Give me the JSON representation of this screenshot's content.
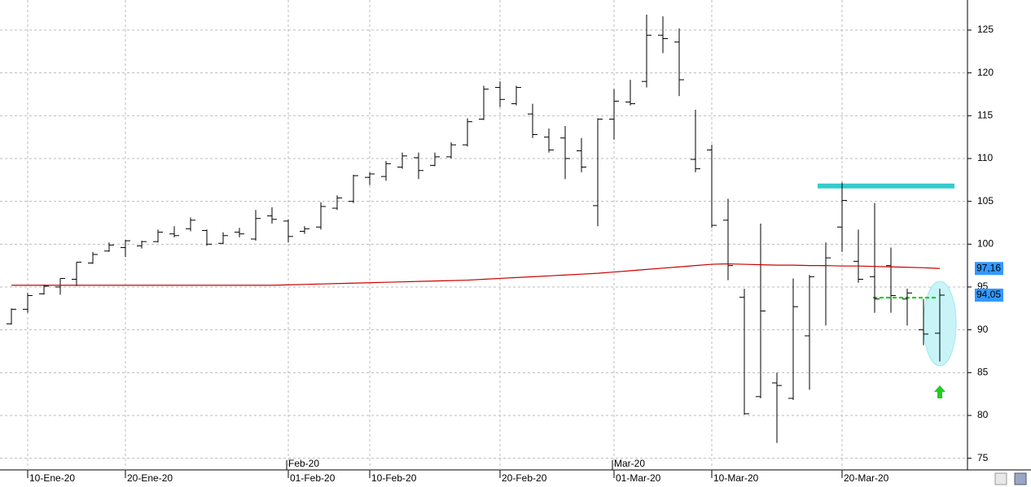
{
  "chart_data": {
    "type": "ohlc",
    "categories": [
      null,
      "10-Ene-20",
      null,
      null,
      null,
      null,
      null,
      "20-Ene-20",
      null,
      null,
      null,
      null,
      null,
      null,
      null,
      null,
      null,
      "01-Feb-20",
      null,
      null,
      null,
      null,
      "10-Feb-20",
      null,
      null,
      null,
      null,
      null,
      null,
      null,
      "20-Feb-20",
      null,
      null,
      null,
      null,
      null,
      null,
      "01-Mar-20",
      null,
      null,
      null,
      null,
      null,
      "10-Mar-20",
      null,
      null,
      null,
      null,
      null,
      null,
      null,
      "20-Mar-20",
      null,
      null,
      null,
      null,
      null,
      null
    ],
    "month_categories": [
      null,
      null,
      null,
      null,
      null,
      null,
      null,
      null,
      null,
      null,
      null,
      null,
      null,
      null,
      null,
      null,
      null,
      "Feb-20",
      null,
      null,
      null,
      null,
      null,
      null,
      null,
      null,
      null,
      null,
      null,
      null,
      null,
      null,
      null,
      null,
      null,
      null,
      null,
      "Mar-20",
      null,
      null,
      null,
      null,
      null,
      null,
      null,
      null,
      null,
      null,
      null,
      null,
      null,
      null,
      null,
      null,
      null,
      null,
      null,
      null
    ],
    "ohlc": {
      "color": "#000000",
      "open": [
        90.7,
        92.4,
        94.2,
        95.0,
        95.9,
        97.8,
        99.2,
        99.6,
        99.8,
        100.3,
        101.2,
        101.8,
        101.6,
        100.1,
        101.4,
        100.6,
        103.3,
        102.7,
        101.5,
        102.0,
        104.2,
        105.0,
        107.8,
        107.9,
        109.0,
        110.1,
        109.2,
        110.2,
        111.6,
        114.6,
        118.3,
        116.4,
        115.2,
        112.5,
        112.4,
        110.9,
        104.5,
        114.6,
        116.6,
        119.0,
        124.4,
        123.6,
        109.9,
        111.0,
        102.8,
        93.8,
        82.2,
        83.8,
        82.0,
        89.3,
        97.5,
        102.0,
        98.0,
        96.2,
        97.5,
        93.6,
        90.0,
        89.6
      ],
      "high": [
        92.5,
        94.3,
        95.3,
        96.0,
        97.9,
        99.1,
        100.2,
        100.5,
        100.4,
        101.7,
        102.1,
        103.1,
        101.7,
        101.4,
        101.9,
        104.0,
        104.3,
        102.9,
        102.1,
        104.9,
        105.7,
        108.1,
        108.4,
        109.7,
        110.7,
        110.7,
        110.7,
        111.9,
        114.7,
        118.5,
        119.0,
        118.5,
        116.4,
        113.5,
        113.8,
        112.4,
        114.7,
        118.1,
        119.2,
        126.8,
        126.6,
        125.2,
        115.7,
        111.6,
        105.3,
        94.8,
        102.4,
        85.0,
        96.0,
        96.4,
        100.2,
        107.2,
        101.7,
        104.8,
        99.6,
        94.8,
        93.6,
        94.8
      ],
      "low": [
        90.6,
        92.0,
        94.1,
        94.1,
        95.1,
        97.7,
        99.1,
        98.5,
        99.5,
        100.2,
        100.8,
        101.5,
        99.8,
        100.0,
        100.8,
        100.4,
        102.4,
        100.2,
        101.2,
        101.7,
        104.0,
        104.8,
        106.9,
        107.4,
        108.8,
        107.6,
        109.1,
        110.0,
        111.4,
        114.5,
        116.0,
        116.2,
        112.4,
        110.7,
        107.6,
        108.4,
        102.1,
        112.2,
        116.2,
        118.3,
        122.3,
        117.3,
        108.4,
        101.9,
        95.8,
        80.1,
        82.0,
        76.8,
        81.8,
        83.0,
        90.5,
        99.1,
        95.5,
        92.0,
        92.0,
        90.5,
        88.2,
        86.3
      ],
      "close": [
        92.4,
        94.0,
        95.1,
        96.0,
        97.9,
        98.8,
        99.9,
        100.4,
        100.3,
        101.4,
        101.0,
        102.8,
        100.0,
        101.0,
        101.2,
        103.0,
        102.9,
        100.9,
        101.8,
        104.4,
        105.4,
        108.0,
        108.2,
        109.4,
        110.3,
        108.6,
        110.2,
        111.6,
        114.3,
        118.1,
        116.9,
        118.3,
        112.8,
        111.0,
        110.0,
        109.0,
        114.6,
        116.7,
        116.4,
        124.4,
        124.0,
        119.2,
        108.8,
        102.2,
        97.5,
        80.2,
        92.2,
        83.5,
        92.7,
        96.2,
        98.4,
        105.1,
        95.9,
        93.6,
        94.0,
        94.3,
        89.5,
        94.05
      ]
    },
    "ma": {
      "color": "#cc0000",
      "values": [
        95.2,
        95.2,
        95.2,
        95.2,
        95.2,
        95.2,
        95.2,
        95.2,
        95.2,
        95.2,
        95.2,
        95.2,
        95.2,
        95.2,
        95.2,
        95.2,
        95.2,
        95.25,
        95.3,
        95.35,
        95.4,
        95.45,
        95.5,
        95.55,
        95.6,
        95.65,
        95.7,
        95.75,
        95.8,
        95.9,
        96.0,
        96.1,
        96.2,
        96.3,
        96.4,
        96.5,
        96.6,
        96.75,
        96.9,
        97.05,
        97.2,
        97.35,
        97.5,
        97.65,
        97.7,
        97.65,
        97.6,
        97.55,
        97.55,
        97.5,
        97.5,
        97.45,
        97.45,
        97.4,
        97.35,
        97.3,
        97.25,
        97.16
      ]
    },
    "markers": [
      {
        "value": 97.16,
        "label": "97,16",
        "color": "#3399ff"
      },
      {
        "value": 94.05,
        "label": "94,05",
        "color": "#3399ff"
      }
    ],
    "hlines": [
      {
        "value": 106.8,
        "color": "#33cccc"
      },
      {
        "value": 93.75,
        "color": "#00cc00"
      }
    ],
    "ylim": [
      73.64,
      128.51
    ],
    "yticks": [
      75,
      80,
      85,
      90,
      95,
      100,
      105,
      110,
      115,
      120,
      125
    ],
    "grid": true
  }
}
